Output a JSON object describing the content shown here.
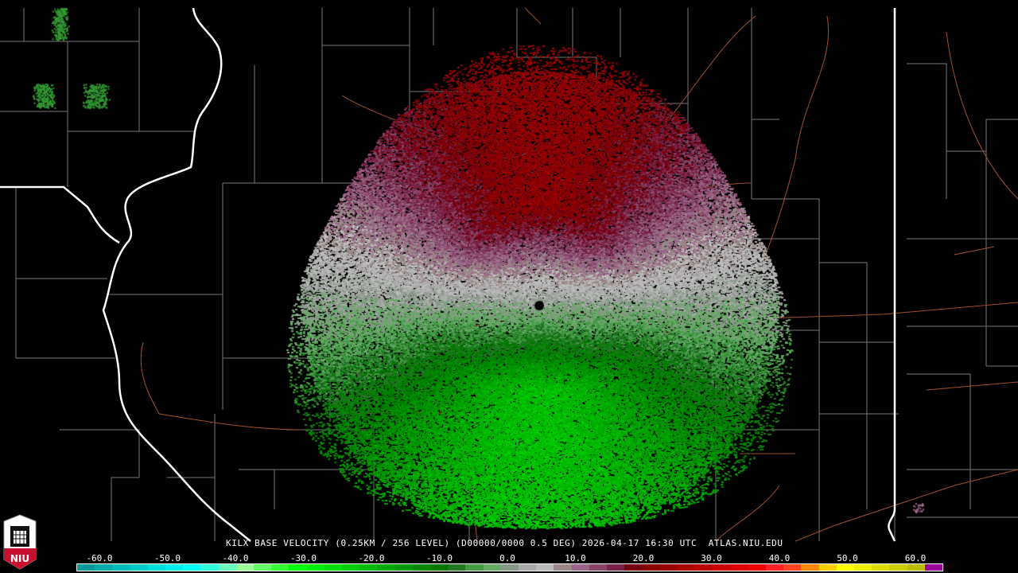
{
  "title": "KILX BASE VELOCITY (0.25KM / 256 LEVEL) (D00000/0000 0.5 DEG) 2026-04-17 16:30 UTC  ATLAS.NIU.EDU",
  "logo": {
    "text": "NIU",
    "icon": "niu-shield-logo"
  },
  "colorbar": {
    "ticks": [
      "-60.0",
      "-50.0",
      "-40.0",
      "-30.0",
      "-20.0",
      "-10.0",
      "0.0",
      "10.0",
      "20.0",
      "30.0",
      "40.0",
      "50.0",
      "60.0"
    ],
    "tick_values": [
      -60,
      -50,
      -40,
      -30,
      -20,
      -10,
      0,
      10,
      20,
      30,
      40,
      50,
      60
    ],
    "colors": [
      "#009999",
      "#00aaaa",
      "#00bbbb",
      "#00cccc",
      "#00dddd",
      "#00eeee",
      "#00ffff",
      "#33ffdd",
      "#66ffbb",
      "#99ff99",
      "#66ff66",
      "#33ff33",
      "#00ff00",
      "#00ee00",
      "#00dd00",
      "#00cc00",
      "#00bb00",
      "#00aa00",
      "#009900",
      "#008800",
      "#007700",
      "#227722",
      "#449944",
      "#66aa66",
      "#889988",
      "#aaaaaa",
      "#bbbbbb",
      "#998888",
      "#996688",
      "#884466",
      "#772244",
      "#770011",
      "#880000",
      "#990000",
      "#aa0000",
      "#bb0000",
      "#cc0000",
      "#dd0000",
      "#ee0000",
      "#ff2222",
      "#ff4422",
      "#ff8800",
      "#ffcc00",
      "#ffff00",
      "#eeee00",
      "#dddd00",
      "#cccc00",
      "#bbbb00",
      "#990099"
    ]
  },
  "radar": {
    "site": "KILX",
    "away_color": "#990000",
    "toward_color": "#008800"
  }
}
